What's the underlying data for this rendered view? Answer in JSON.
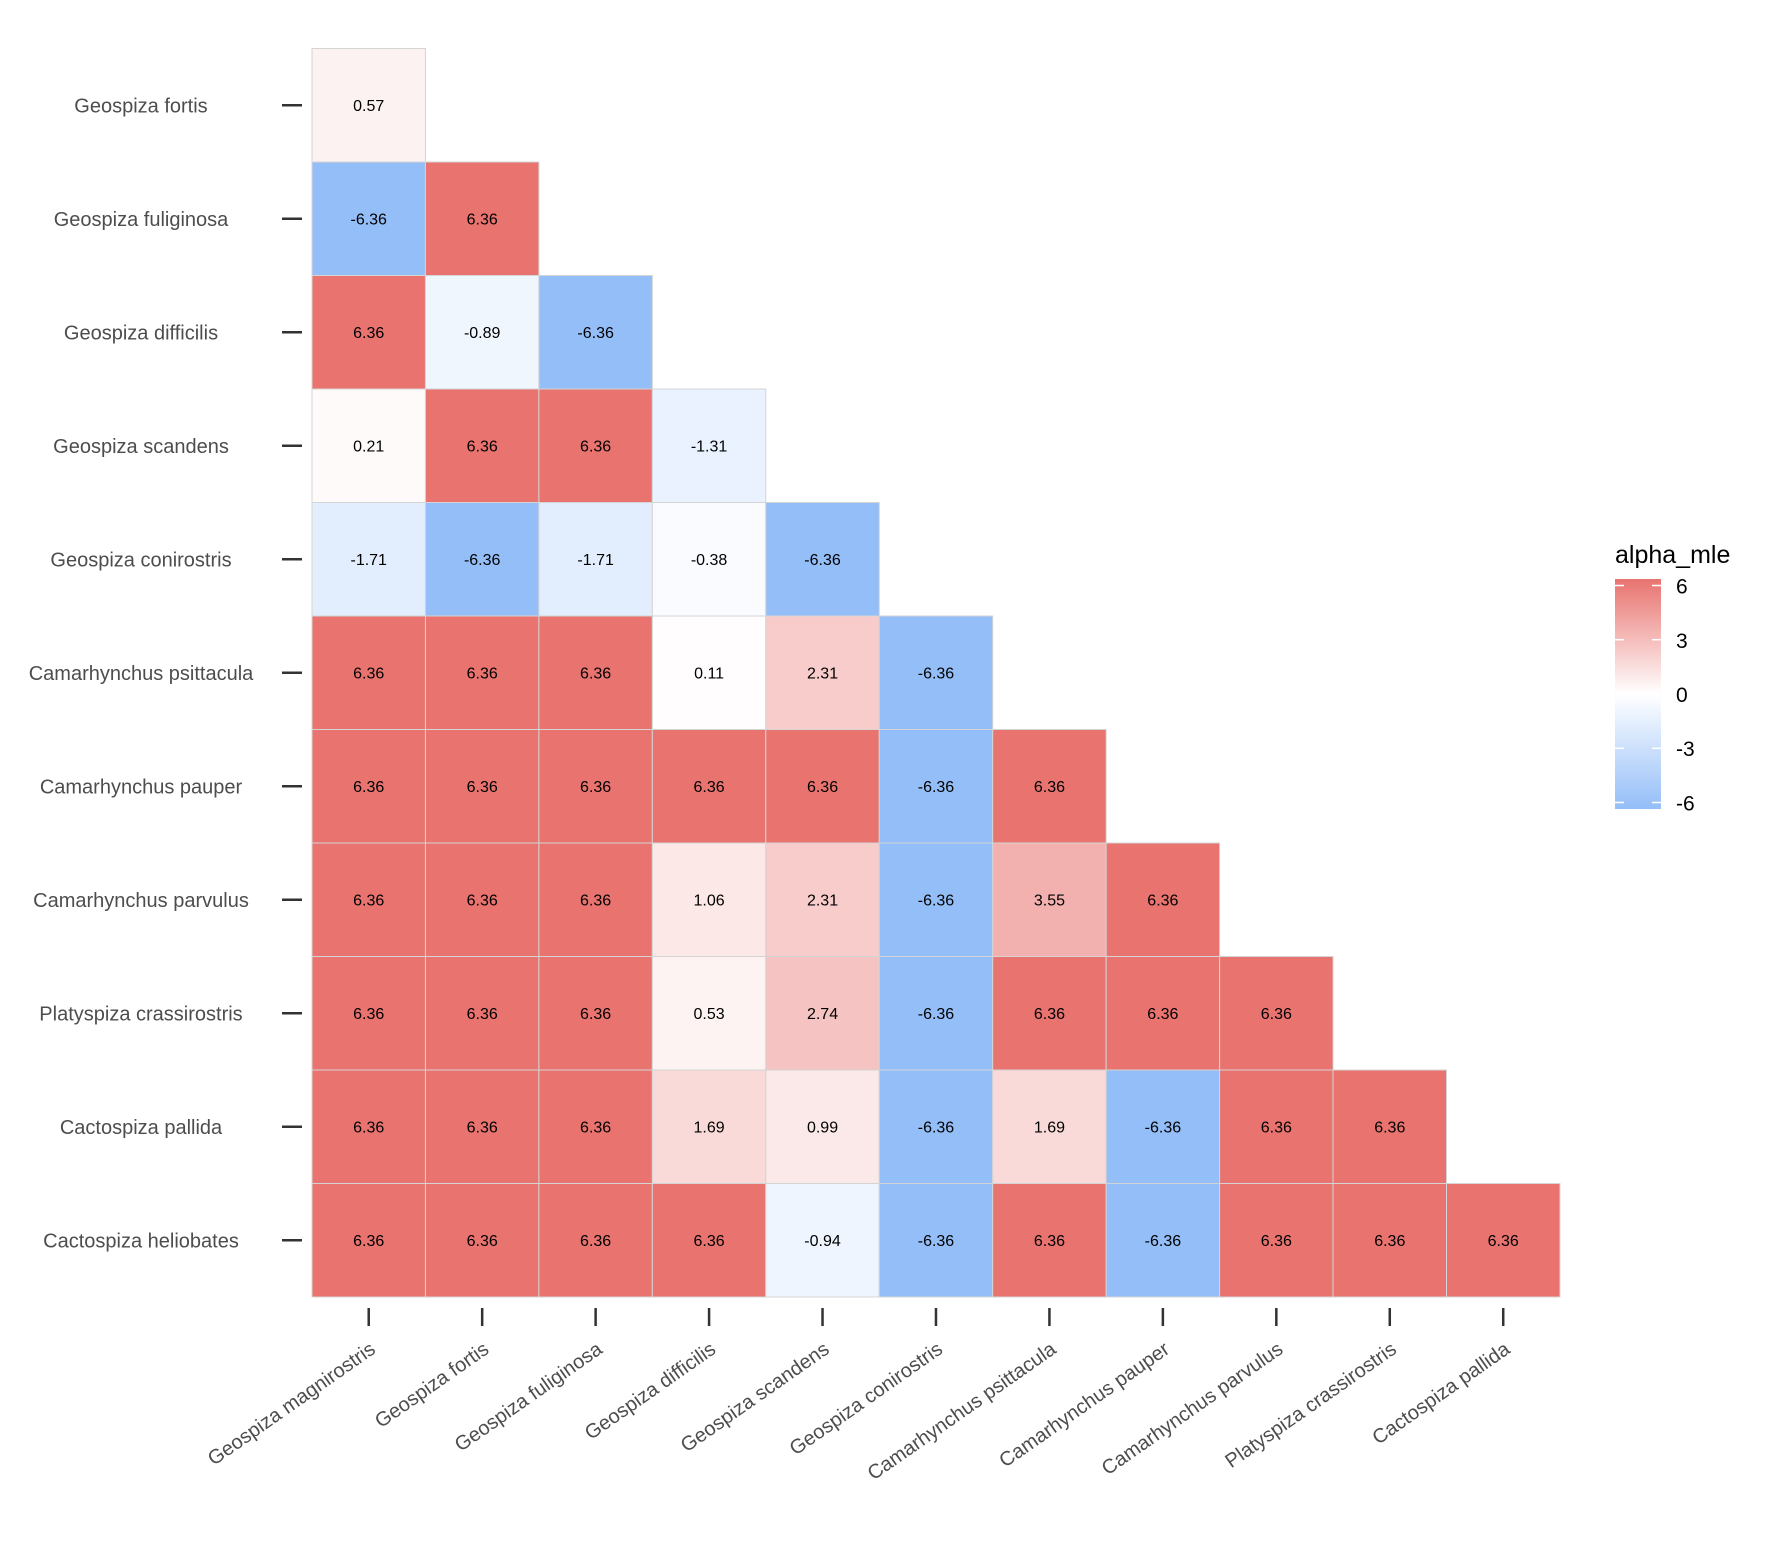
{
  "chart_data": {
    "type": "heatmap",
    "title": "",
    "xlabel": "",
    "ylabel": "",
    "x_categories": [
      "Geospiza magnirostris",
      "Geospiza fortis",
      "Geospiza fuliginosa",
      "Geospiza difficilis",
      "Geospiza scandens",
      "Geospiza conirostris",
      "Camarhynchus psittacula",
      "Camarhynchus pauper",
      "Camarhynchus parvulus",
      "Platyspiza crassirostris",
      "Cactospiza pallida"
    ],
    "y_categories": [
      "Geospiza fortis",
      "Geospiza fuliginosa",
      "Geospiza difficilis",
      "Geospiza scandens",
      "Geospiza conirostris",
      "Camarhynchus psittacula",
      "Camarhynchus pauper",
      "Camarhynchus parvulus",
      "Platyspiza crassirostris",
      "Cactospiza pallida",
      "Cactospiza heliobates"
    ],
    "values": [
      [
        0.57
      ],
      [
        -6.36,
        6.36
      ],
      [
        6.36,
        -0.89,
        -6.36
      ],
      [
        0.21,
        6.36,
        6.36,
        -1.31
      ],
      [
        -1.71,
        -6.36,
        -1.71,
        -0.38,
        -6.36
      ],
      [
        6.36,
        6.36,
        6.36,
        0.11,
        2.31,
        -6.36
      ],
      [
        6.36,
        6.36,
        6.36,
        6.36,
        6.36,
        -6.36,
        6.36
      ],
      [
        6.36,
        6.36,
        6.36,
        1.06,
        2.31,
        -6.36,
        3.55,
        6.36
      ],
      [
        6.36,
        6.36,
        6.36,
        0.53,
        2.74,
        -6.36,
        6.36,
        6.36,
        6.36
      ],
      [
        6.36,
        6.36,
        6.36,
        1.69,
        0.99,
        -6.36,
        1.69,
        -6.36,
        6.36,
        6.36
      ],
      [
        6.36,
        6.36,
        6.36,
        6.36,
        -0.94,
        -6.36,
        6.36,
        -6.36,
        6.36,
        6.36,
        6.36
      ]
    ],
    "legend": {
      "title": "alpha_mle",
      "ticks": [
        "6",
        "3",
        "0",
        "-3",
        "-6"
      ],
      "range": [
        -6.36,
        6.36
      ],
      "position": "right"
    },
    "colors": {
      "high": "#E8736F",
      "mid": "#FFFFFF",
      "low": "#94BEF8"
    },
    "grid": false
  }
}
